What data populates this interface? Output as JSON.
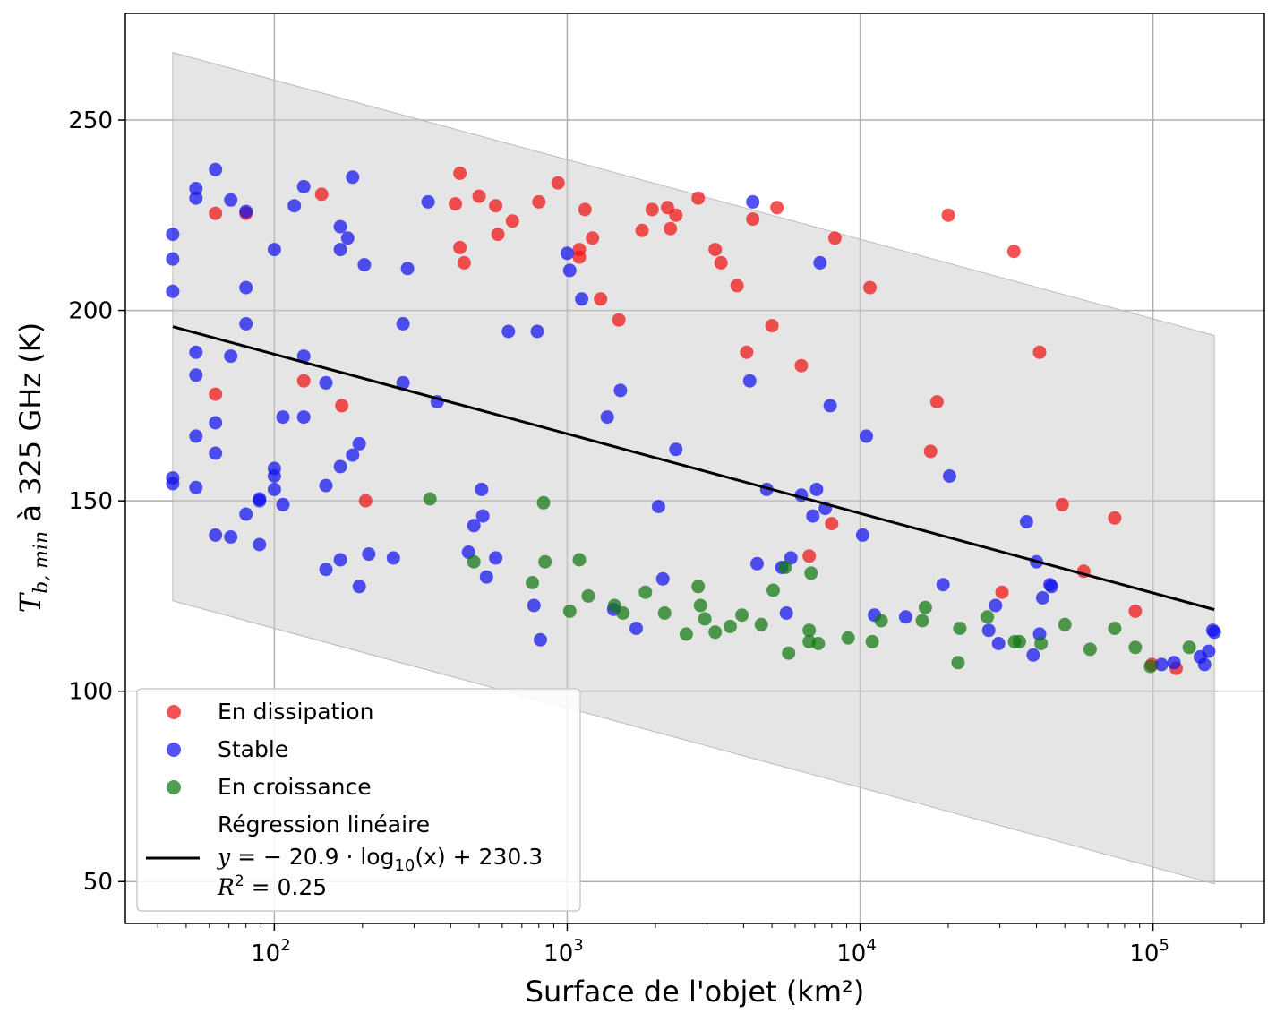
{
  "chart_data": {
    "type": "scatter",
    "xlabel": "Surface de l'objet (km²)",
    "ylabel_main": "T",
    "ylabel_sub": "b, min",
    "ylabel_rest": " à 325 GHz (K)",
    "xscale": "log",
    "xlim": [
      31,
      240000
    ],
    "ylim": [
      39,
      278
    ],
    "xticks": [
      {
        "value": 100,
        "base": "10",
        "exp": "2"
      },
      {
        "value": 1000,
        "base": "10",
        "exp": "3"
      },
      {
        "value": 10000,
        "base": "10",
        "exp": "4"
      },
      {
        "value": 100000,
        "base": "10",
        "exp": "5"
      }
    ],
    "yticks": [
      50,
      100,
      150,
      200,
      250
    ],
    "grid": true,
    "legend_position": "lower-left",
    "colors": {
      "dissipation": "#ee1111",
      "stable": "#1111ee",
      "croissance": "#117711",
      "regression": "#000000",
      "band": "#cccccc"
    },
    "series": [
      {
        "name": "En dissipation",
        "key": "dissipation",
        "points": [
          [
            63,
            225.5
          ],
          [
            80,
            225.5
          ],
          [
            63,
            178
          ],
          [
            126,
            181.5
          ],
          [
            145,
            230.5
          ],
          [
            170,
            175
          ],
          [
            205,
            150
          ],
          [
            415,
            228
          ],
          [
            430,
            236
          ],
          [
            430,
            216.5
          ],
          [
            445,
            212.5
          ],
          [
            500,
            230
          ],
          [
            570,
            227.5
          ],
          [
            580,
            220
          ],
          [
            650,
            223.5
          ],
          [
            800,
            228.5
          ],
          [
            930,
            233.5
          ],
          [
            1100,
            216
          ],
          [
            1100,
            214
          ],
          [
            1150,
            226.5
          ],
          [
            1220,
            219
          ],
          [
            1300,
            203
          ],
          [
            1500,
            197.5
          ],
          [
            1800,
            221
          ],
          [
            1950,
            226.5
          ],
          [
            2200,
            227
          ],
          [
            2250,
            221.5
          ],
          [
            2350,
            225
          ],
          [
            2800,
            229.5
          ],
          [
            3200,
            216
          ],
          [
            3350,
            212.5
          ],
          [
            3800,
            206.5
          ],
          [
            4100,
            189
          ],
          [
            4300,
            224
          ],
          [
            5000,
            196
          ],
          [
            5200,
            227
          ],
          [
            6300,
            185.5
          ],
          [
            6700,
            135.5
          ],
          [
            8000,
            144
          ],
          [
            8200,
            219
          ],
          [
            10800,
            206
          ],
          [
            17400,
            163
          ],
          [
            18300,
            176
          ],
          [
            20000,
            225
          ],
          [
            30500,
            126
          ],
          [
            33500,
            215.5
          ],
          [
            41000,
            189
          ],
          [
            49000,
            149
          ],
          [
            58000,
            131.5
          ],
          [
            74000,
            145.5
          ],
          [
            87000,
            121
          ],
          [
            99000,
            107
          ],
          [
            120000,
            106
          ]
        ]
      },
      {
        "name": "Stable",
        "key": "stable",
        "points": [
          [
            45,
            220
          ],
          [
            45,
            213.5
          ],
          [
            45,
            205
          ],
          [
            45,
            156
          ],
          [
            45,
            154.5
          ],
          [
            54,
            232
          ],
          [
            54,
            229.5
          ],
          [
            54,
            189
          ],
          [
            54,
            183
          ],
          [
            54,
            167
          ],
          [
            54,
            153.5
          ],
          [
            63,
            237
          ],
          [
            63,
            170.5
          ],
          [
            63,
            162.5
          ],
          [
            63,
            141
          ],
          [
            71,
            229
          ],
          [
            71,
            188
          ],
          [
            71,
            140.5
          ],
          [
            80,
            226
          ],
          [
            80,
            206
          ],
          [
            80,
            196.5
          ],
          [
            80,
            146.5
          ],
          [
            89,
            150.5
          ],
          [
            89,
            150
          ],
          [
            89,
            138.5
          ],
          [
            100,
            216
          ],
          [
            100,
            158.5
          ],
          [
            100,
            156.5
          ],
          [
            100,
            153
          ],
          [
            107,
            172
          ],
          [
            107,
            149
          ],
          [
            117,
            227.5
          ],
          [
            126,
            232.5
          ],
          [
            126,
            188
          ],
          [
            126,
            172
          ],
          [
            150,
            181
          ],
          [
            150,
            154
          ],
          [
            150,
            132
          ],
          [
            168,
            222
          ],
          [
            168,
            216
          ],
          [
            168,
            159
          ],
          [
            168,
            134.5
          ],
          [
            178,
            219
          ],
          [
            185,
            235
          ],
          [
            185,
            162
          ],
          [
            195,
            165
          ],
          [
            195,
            127.5
          ],
          [
            203,
            212
          ],
          [
            210,
            136
          ],
          [
            255,
            135
          ],
          [
            275,
            196.5
          ],
          [
            275,
            181
          ],
          [
            285,
            211
          ],
          [
            335,
            228.5
          ],
          [
            360,
            176
          ],
          [
            460,
            136.5
          ],
          [
            480,
            143.5
          ],
          [
            510,
            153
          ],
          [
            515,
            146
          ],
          [
            530,
            130
          ],
          [
            570,
            135
          ],
          [
            630,
            194.5
          ],
          [
            770,
            122.5
          ],
          [
            790,
            194.5
          ],
          [
            810,
            113.5
          ],
          [
            1000,
            215
          ],
          [
            1020,
            210.5
          ],
          [
            1120,
            203
          ],
          [
            1370,
            172
          ],
          [
            1440,
            121.5
          ],
          [
            1520,
            179
          ],
          [
            1720,
            116.5
          ],
          [
            2050,
            148.5
          ],
          [
            2120,
            129.5
          ],
          [
            2350,
            163.5
          ],
          [
            4200,
            181.5
          ],
          [
            4300,
            228.5
          ],
          [
            4450,
            133.5
          ],
          [
            4800,
            153
          ],
          [
            5400,
            132.5
          ],
          [
            5600,
            120.5
          ],
          [
            5800,
            135
          ],
          [
            6300,
            151.5
          ],
          [
            6900,
            146
          ],
          [
            7100,
            153
          ],
          [
            7300,
            212.5
          ],
          [
            7600,
            148
          ],
          [
            7900,
            175
          ],
          [
            10200,
            141
          ],
          [
            10500,
            167
          ],
          [
            11200,
            120
          ],
          [
            14300,
            119.5
          ],
          [
            19200,
            128
          ],
          [
            20200,
            156.5
          ],
          [
            27500,
            116
          ],
          [
            29000,
            122.5
          ],
          [
            29700,
            112.5
          ],
          [
            37000,
            144.5
          ],
          [
            39000,
            109.5
          ],
          [
            40000,
            134
          ],
          [
            41000,
            115
          ],
          [
            42000,
            124.5
          ],
          [
            44500,
            128
          ],
          [
            45000,
            127.5
          ],
          [
            107000,
            107
          ],
          [
            118000,
            107.5
          ],
          [
            145000,
            109
          ],
          [
            150000,
            107
          ],
          [
            155000,
            110.5
          ],
          [
            160000,
            116
          ],
          [
            162000,
            115.5
          ]
        ]
      },
      {
        "name": "En croissance",
        "key": "croissance",
        "points": [
          [
            340,
            150.5
          ],
          [
            480,
            134
          ],
          [
            760,
            128.5
          ],
          [
            830,
            149.5
          ],
          [
            840,
            134
          ],
          [
            1020,
            121
          ],
          [
            1100,
            134.5
          ],
          [
            1180,
            125
          ],
          [
            1450,
            122.5
          ],
          [
            1550,
            120.5
          ],
          [
            1850,
            126
          ],
          [
            2150,
            120.5
          ],
          [
            2550,
            115
          ],
          [
            2800,
            127.5
          ],
          [
            2850,
            122.5
          ],
          [
            2950,
            119
          ],
          [
            3200,
            115.5
          ],
          [
            3600,
            117
          ],
          [
            3950,
            120
          ],
          [
            4600,
            117.5
          ],
          [
            5050,
            126.5
          ],
          [
            5550,
            132.5
          ],
          [
            5700,
            110
          ],
          [
            6700,
            116
          ],
          [
            6700,
            113
          ],
          [
            6800,
            131
          ],
          [
            7200,
            112.5
          ],
          [
            9100,
            114
          ],
          [
            11000,
            113
          ],
          [
            11800,
            118.5
          ],
          [
            16300,
            118.5
          ],
          [
            16700,
            122
          ],
          [
            21600,
            107.5
          ],
          [
            21900,
            116.5
          ],
          [
            27200,
            119.5
          ],
          [
            33700,
            113
          ],
          [
            35000,
            113
          ],
          [
            41500,
            112.5
          ],
          [
            50000,
            117.5
          ],
          [
            61000,
            111
          ],
          [
            74000,
            116.5
          ],
          [
            87000,
            111.5
          ],
          [
            98000,
            106.5
          ],
          [
            133000,
            111.5
          ]
        ]
      }
    ],
    "regression": {
      "label": "Régression linéaire",
      "equation_lhs": "y",
      "equation_rhs": " = − 20.9 · log",
      "equation_sub": "10",
      "equation_tail": "(x) + 230.3",
      "r2_lhs": "R",
      "r2_exp": "2",
      "r2_rhs": " = 0.25",
      "slope": -20.9,
      "intercept": 230.3,
      "x_range": [
        45,
        162000
      ],
      "band_halfwidth": 72
    }
  }
}
